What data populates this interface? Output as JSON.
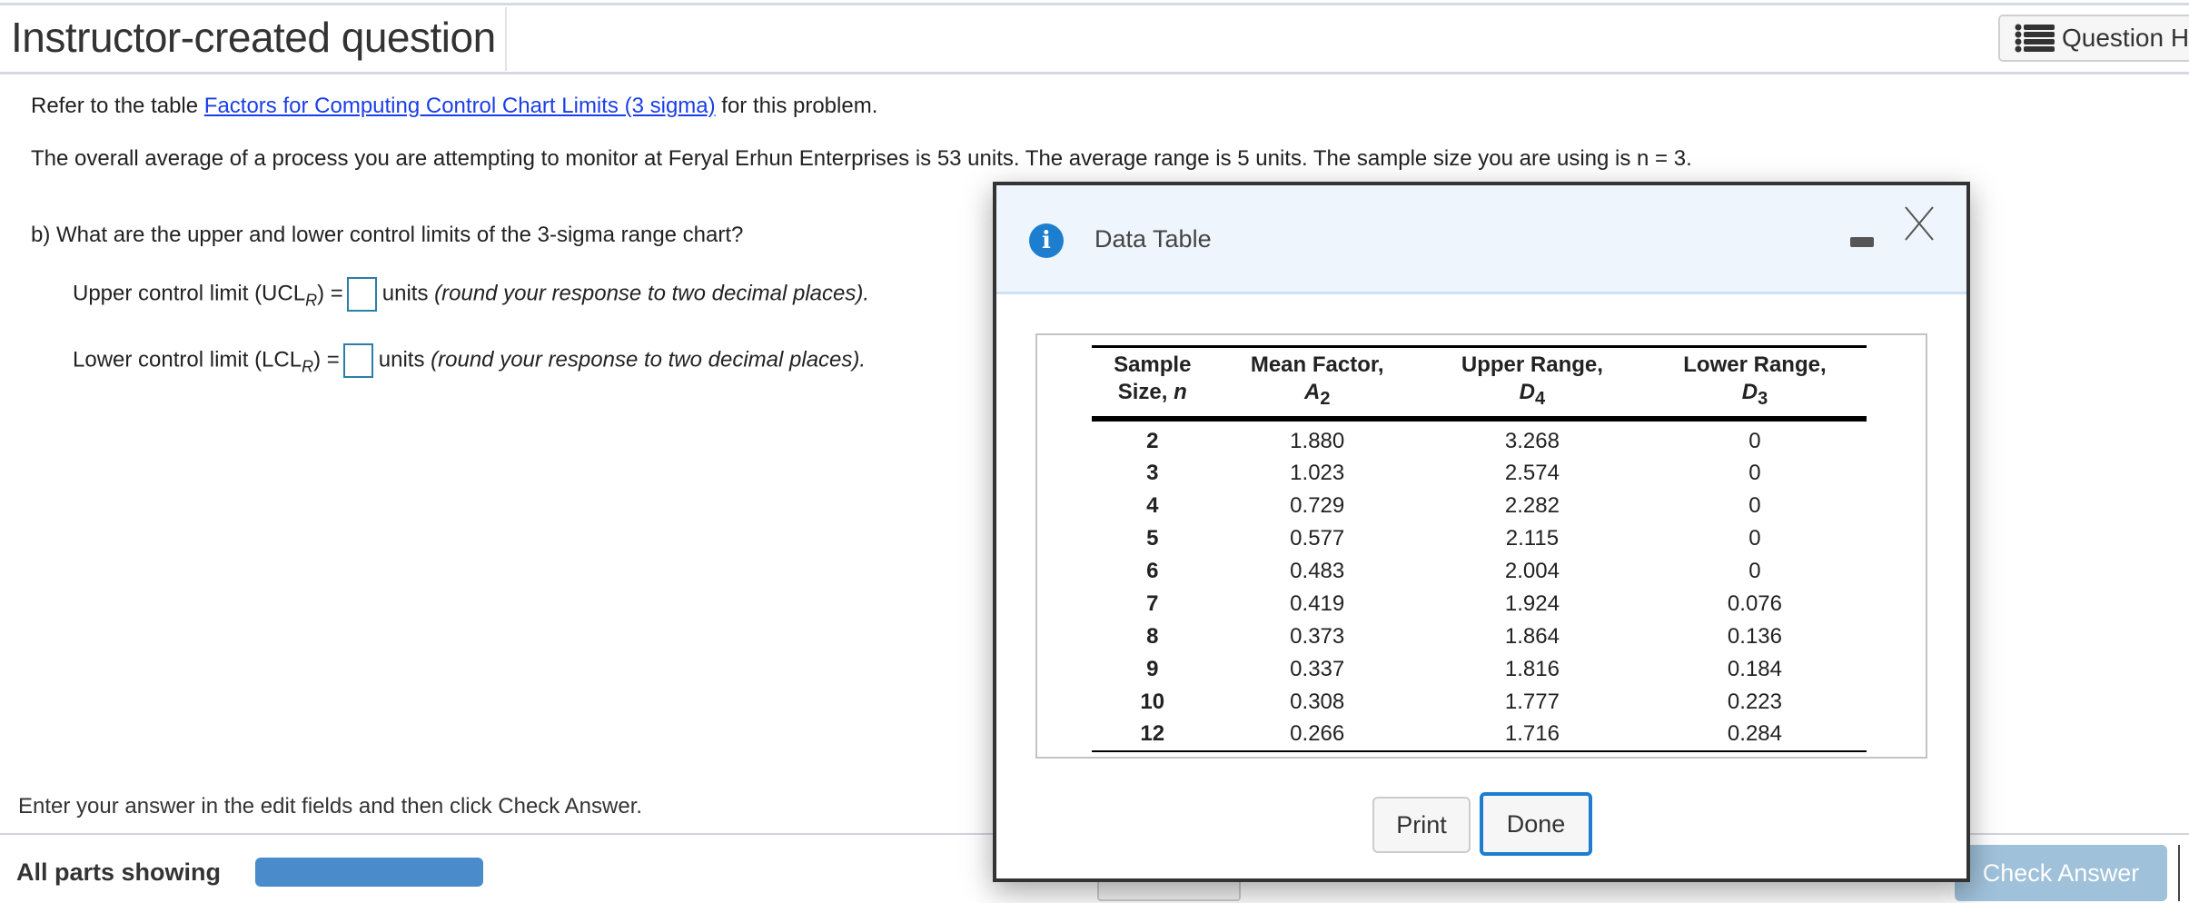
{
  "header": {
    "title": "Instructor-created question",
    "help_button": "Question Help"
  },
  "question": {
    "refer_prefix": "Refer to the table ",
    "refer_link": "Factors for Computing Control Chart Limits (3 sigma)",
    "refer_suffix": " for this problem.",
    "statement": "The overall average of a process you are attempting to monitor at Feryal Erhun Enterprises is 53 units. The average range is 5 units. The sample size you are using is n = 3.",
    "part_b": "b) What are the upper and lower control limits of the 3-sigma range chart?",
    "ucl": {
      "label": "Upper control limit (UCL",
      "sub": "R",
      "eq": ") =",
      "value": "",
      "units": "units ",
      "note": "(round your response to two decimal places)."
    },
    "lcl": {
      "label": "Lower control limit (LCL",
      "sub": "R",
      "eq": ") =",
      "value": "",
      "units": "units ",
      "note": "(round your response to two decimal places)."
    }
  },
  "footer": {
    "instruction": "Enter your answer in the edit fields and then click Check Answer.",
    "parts": "All parts showing",
    "check_button": "Check Answer"
  },
  "dialog": {
    "title": "Data Table",
    "columns": [
      {
        "l1": "Sample",
        "l2": "Size, ",
        "sym": "n",
        "sub": ""
      },
      {
        "l1": "Mean Factor,",
        "l2": "",
        "sym": "A",
        "sub": "2"
      },
      {
        "l1": "Upper Range,",
        "l2": "",
        "sym": "D",
        "sub": "4"
      },
      {
        "l1": "Lower Range,",
        "l2": "",
        "sym": "D",
        "sub": "3"
      }
    ],
    "rows": [
      [
        "2",
        "1.880",
        "3.268",
        "0"
      ],
      [
        "3",
        "1.023",
        "2.574",
        "0"
      ],
      [
        "4",
        "0.729",
        "2.282",
        "0"
      ],
      [
        "5",
        "0.577",
        "2.115",
        "0"
      ],
      [
        "6",
        "0.483",
        "2.004",
        "0"
      ],
      [
        "7",
        "0.419",
        "1.924",
        "0.076"
      ],
      [
        "8",
        "0.373",
        "1.864",
        "0.136"
      ],
      [
        "9",
        "0.337",
        "1.816",
        "0.184"
      ],
      [
        "10",
        "0.308",
        "1.777",
        "0.223"
      ],
      [
        "12",
        "0.266",
        "1.716",
        "0.284"
      ]
    ],
    "print_button": "Print",
    "done_button": "Done"
  },
  "colors": {
    "link": "#1a3ee8",
    "accent": "#1d7ed0",
    "progress": "#4a8ccb",
    "check_disabled": "#9fc1da"
  }
}
